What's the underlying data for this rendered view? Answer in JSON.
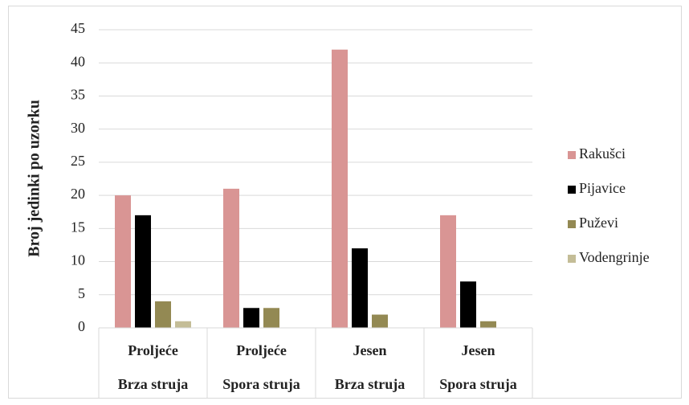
{
  "chart_data": {
    "type": "bar",
    "ylabel": "Broj jedinki po uzorku",
    "categories": [
      "Proljeće",
      "Proljeće",
      "Jesen",
      "Jesen"
    ],
    "subcategories": [
      "Brza struja",
      "Spora struja",
      "Brza struja",
      "Spora struja"
    ],
    "series": [
      {
        "name": "Rakušci",
        "color": "#d99594",
        "values": [
          20,
          21,
          42,
          17
        ]
      },
      {
        "name": "Pijavice",
        "color": "#000000",
        "values": [
          17,
          3,
          12,
          7
        ]
      },
      {
        "name": "Puževi",
        "color": "#938953",
        "values": [
          4,
          3,
          2,
          1
        ]
      },
      {
        "name": "Vodengrinje",
        "color": "#c4bd97",
        "values": [
          1,
          0,
          0,
          0
        ]
      }
    ],
    "ylim": [
      0,
      45
    ],
    "yticks": [
      0,
      5,
      10,
      15,
      20,
      25,
      30,
      35,
      40,
      45
    ],
    "grid": true,
    "legend": "right"
  }
}
